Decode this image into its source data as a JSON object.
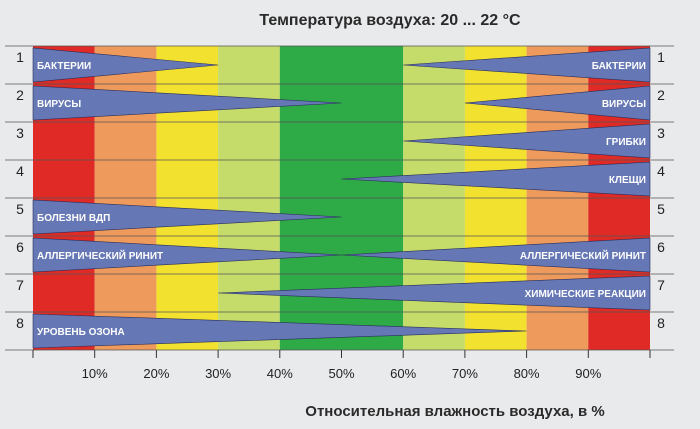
{
  "chart_data": {
    "type": "bar",
    "title": "Температура воздуха: 20 ... 22 °C",
    "xlabel": "Относительная влажность воздуха, в %",
    "xlim": [
      0,
      100
    ],
    "x_ticks": [
      {
        "value": 10,
        "label": "10%"
      },
      {
        "value": 20,
        "label": "20%"
      },
      {
        "value": 30,
        "label": "30%"
      },
      {
        "value": 40,
        "label": "40%"
      },
      {
        "value": 50,
        "label": "50%"
      },
      {
        "value": 60,
        "label": "60%"
      },
      {
        "value": 70,
        "label": "70%"
      },
      {
        "value": 80,
        "label": "80%"
      },
      {
        "value": 90,
        "label": "90%"
      }
    ],
    "background_zones": [
      {
        "from": 0,
        "to": 10,
        "color": "#e02a25"
      },
      {
        "from": 10,
        "to": 20,
        "color": "#ee9a5c"
      },
      {
        "from": 20,
        "to": 30,
        "color": "#f3e130"
      },
      {
        "from": 30,
        "to": 40,
        "color": "#c6dc6a"
      },
      {
        "from": 40,
        "to": 60,
        "color": "#2eaa46"
      },
      {
        "from": 60,
        "to": 70,
        "color": "#c6dc6a"
      },
      {
        "from": 70,
        "to": 80,
        "color": "#f3e130"
      },
      {
        "from": 80,
        "to": 90,
        "color": "#ee9a5c"
      },
      {
        "from": 90,
        "to": 100,
        "color": "#e02a25"
      }
    ],
    "wedge_color": "#6577b5",
    "rows": [
      {
        "number": "1",
        "label_left": "БАКТЕРИИ",
        "label_right": "БАКТЕРИИ",
        "left_until": 30,
        "right_from": 60
      },
      {
        "number": "2",
        "label_left": "ВИРУСЫ",
        "label_right": "ВИРУСЫ",
        "left_until": 50,
        "right_from": 70
      },
      {
        "number": "3",
        "label_left": "",
        "label_right": "ГРИБКИ",
        "left_until": null,
        "right_from": 60
      },
      {
        "number": "4",
        "label_left": "",
        "label_right": "КЛЕЩИ",
        "left_until": null,
        "right_from": 50
      },
      {
        "number": "5",
        "label_left": "БОЛЕЗНИ ВДП",
        "label_right": "",
        "left_until": 50,
        "right_from": null
      },
      {
        "number": "6",
        "label_left": "АЛЛЕРГИЧЕСКИЙ РИНИТ",
        "label_right": "АЛЛЕРГИЧЕСКИЙ РИНИТ",
        "left_until": 50,
        "right_from": 50
      },
      {
        "number": "7",
        "label_left": "",
        "label_right": "ХИМИЧЕСКИЕ РЕАКЦИИ",
        "left_until": null,
        "right_from": 30
      },
      {
        "number": "8",
        "label_left": "УРОВЕНЬ ОЗОНА",
        "label_right": "",
        "left_until": 80,
        "right_from": null
      }
    ]
  }
}
